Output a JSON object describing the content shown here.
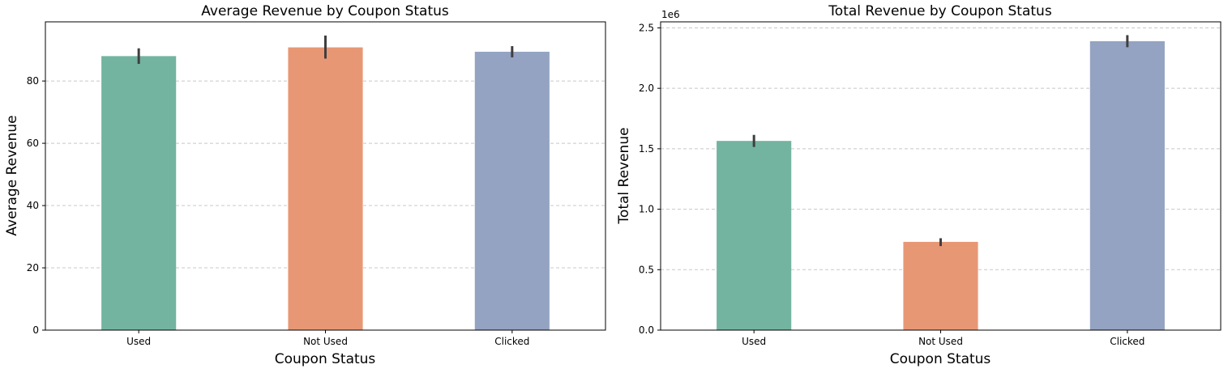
{
  "chart_data": [
    {
      "type": "bar",
      "title": "Average Revenue by Coupon Status",
      "xlabel": "Coupon Status",
      "ylabel": "Average Revenue",
      "categories": [
        "Used",
        "Not Used",
        "Clicked"
      ],
      "values": [
        88,
        90.8,
        89.4
      ],
      "error_low": [
        85.5,
        87.2,
        87.6
      ],
      "error_high": [
        90.5,
        94.6,
        91.2
      ],
      "ylim": [
        0,
        99
      ],
      "yticks": [
        0,
        20,
        40,
        60,
        80
      ],
      "ytick_labels": [
        "0",
        "20",
        "40",
        "60",
        "80"
      ],
      "offset_label": "",
      "colors": [
        "#73b4a0",
        "#e89775",
        "#94a3c2"
      ],
      "grid": "y-dashed"
    },
    {
      "type": "bar",
      "title": "Total Revenue by Coupon Status",
      "xlabel": "Coupon Status",
      "ylabel": "Total Revenue",
      "categories": [
        "Used",
        "Not Used",
        "Clicked"
      ],
      "values": [
        1565000,
        730000,
        2390000
      ],
      "error_low": [
        1515000,
        695000,
        2340000
      ],
      "error_high": [
        1615000,
        760000,
        2440000
      ],
      "ylim": [
        0,
        2550000
      ],
      "yticks": [
        0,
        500000,
        1000000,
        1500000,
        2000000,
        2500000
      ],
      "ytick_labels": [
        "0.0",
        "0.5",
        "1.0",
        "1.5",
        "2.0",
        "2.5"
      ],
      "offset_label": "1e6",
      "colors": [
        "#73b4a0",
        "#e89775",
        "#94a3c2"
      ],
      "grid": "y-dashed"
    }
  ]
}
